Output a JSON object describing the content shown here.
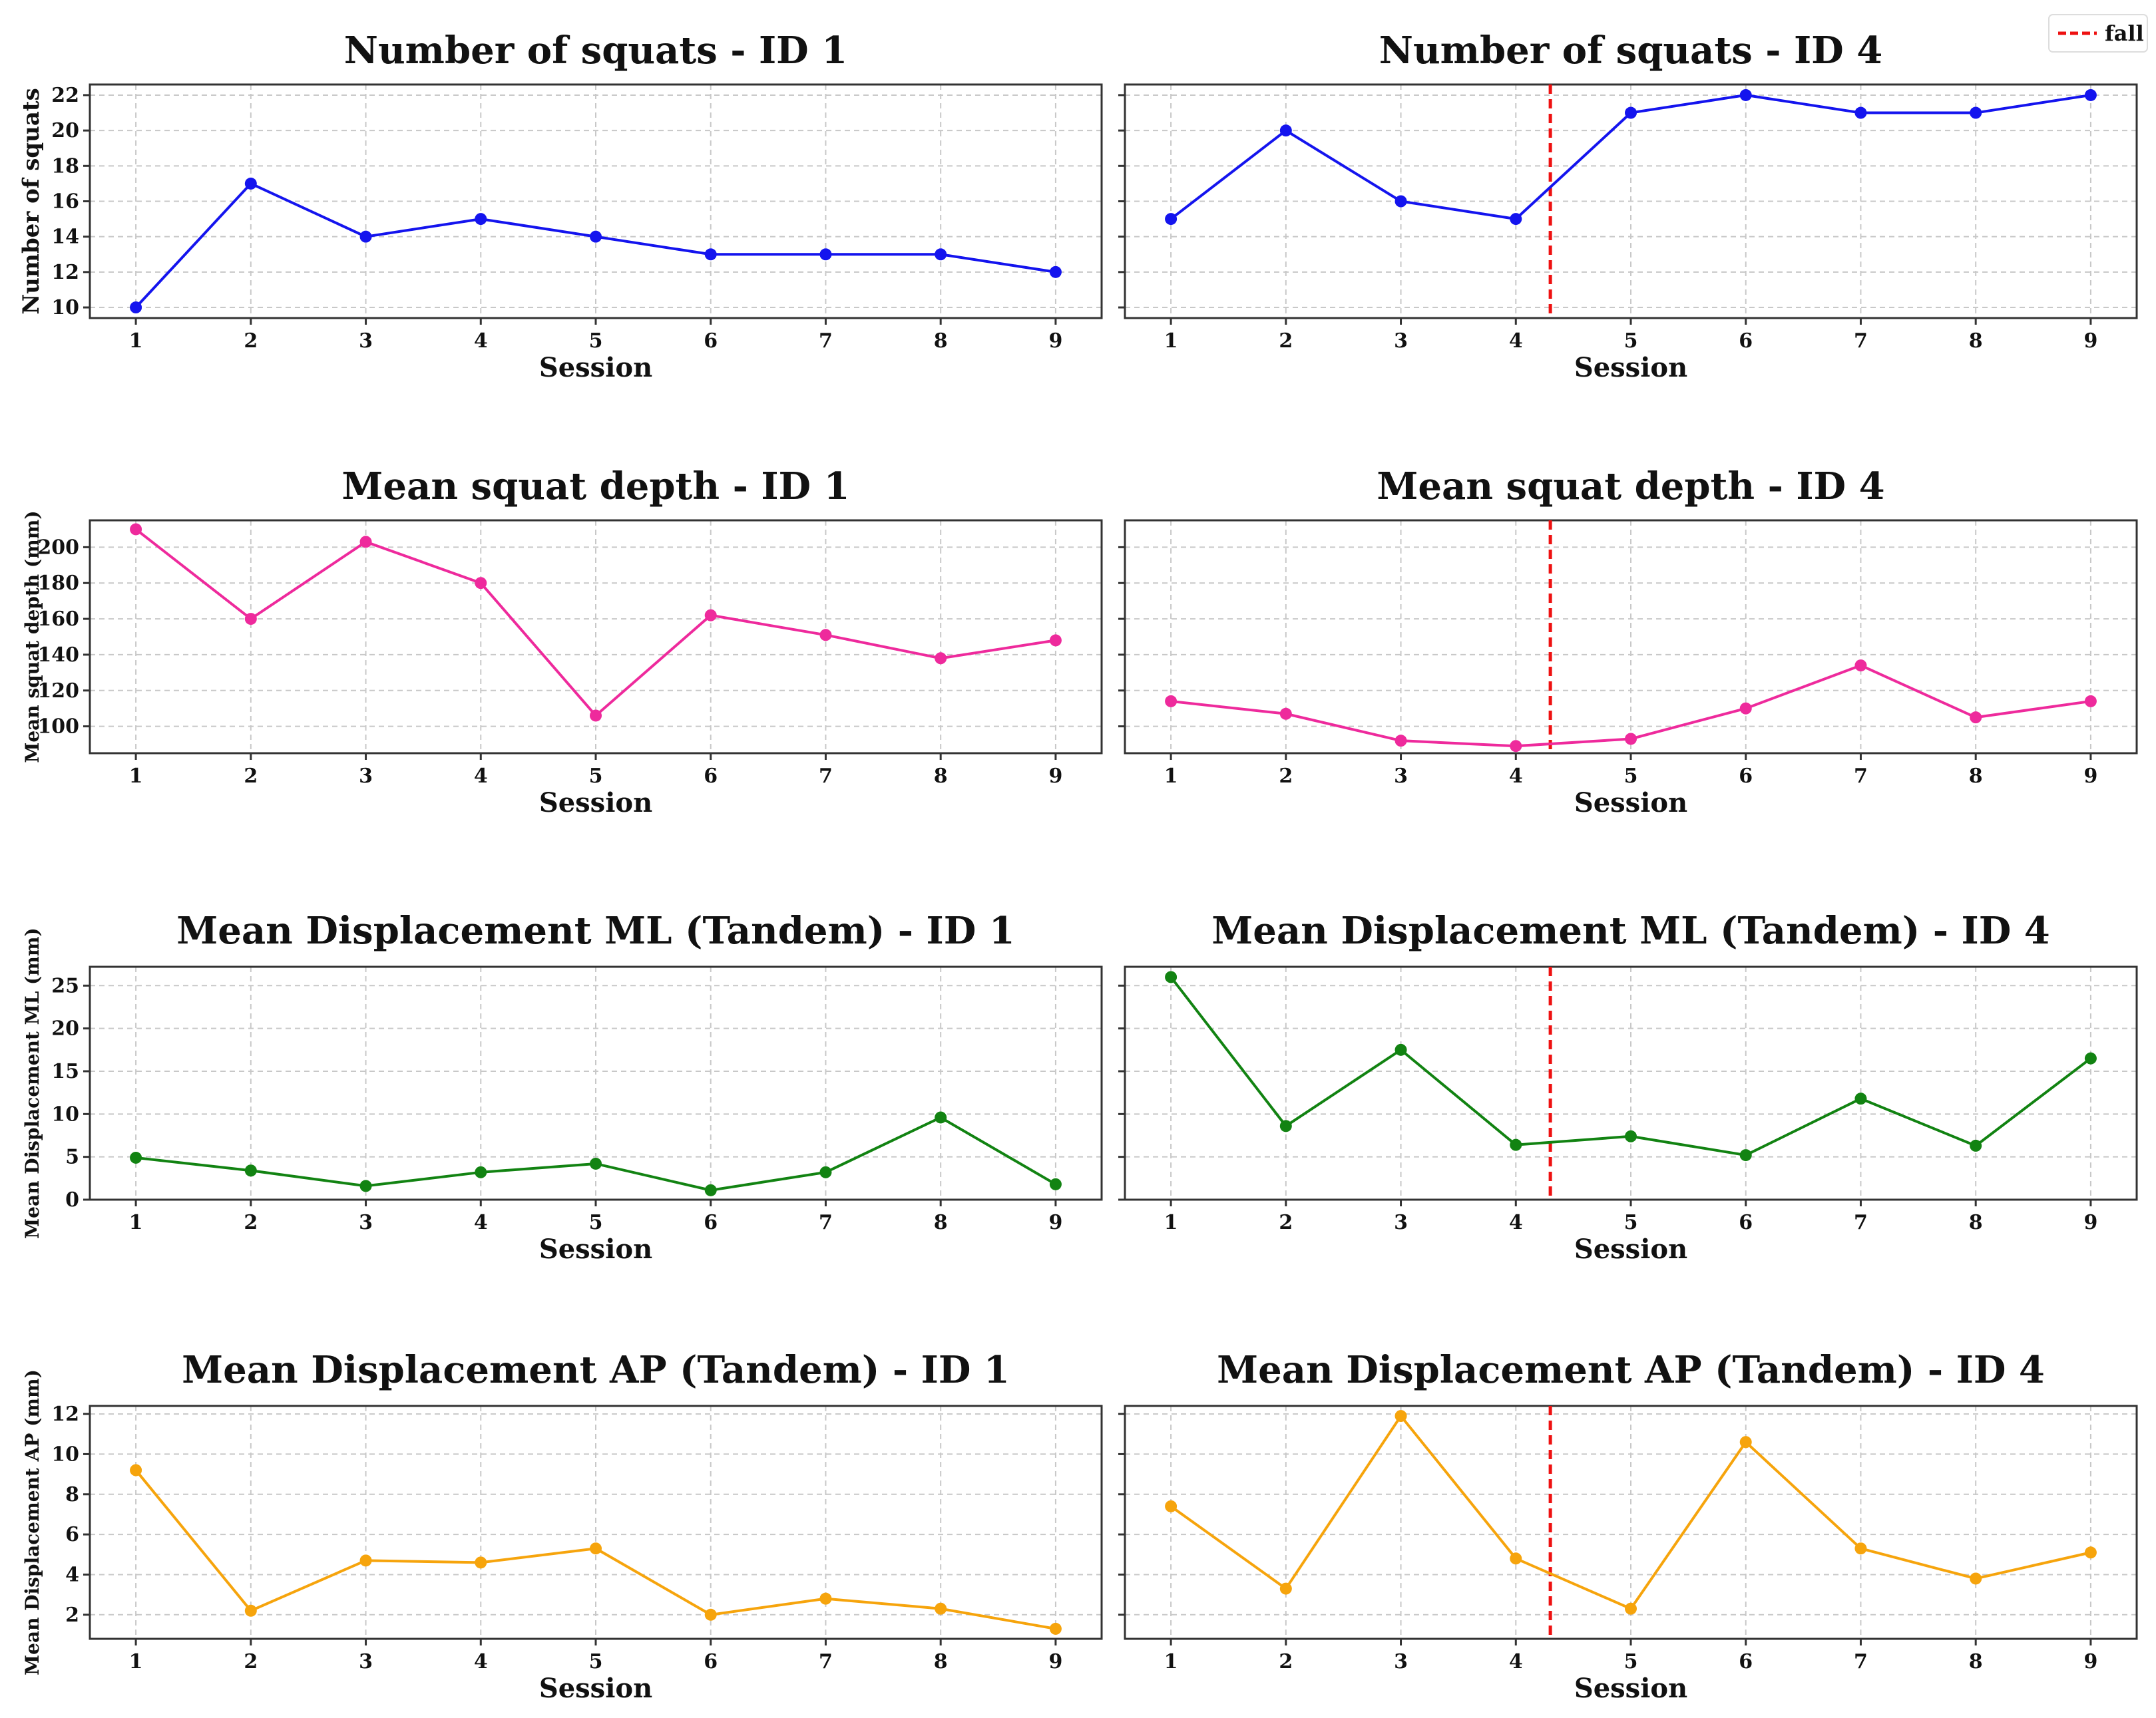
{
  "figure": {
    "legend": {
      "label": "fall",
      "color": "#ee1111",
      "placement": "top-right"
    }
  },
  "chart_data": [
    {
      "type": "line",
      "title": "Number of squats - ID 1",
      "xlabel": "Session",
      "ylabel": "Number of squats",
      "x": [
        1,
        2,
        3,
        4,
        5,
        6,
        7,
        8,
        9
      ],
      "values": [
        10,
        17,
        14,
        15,
        14,
        13,
        13,
        13,
        12
      ],
      "yticks": [
        10,
        12,
        14,
        16,
        18,
        20,
        22
      ],
      "ylim": [
        9.4,
        22.6
      ],
      "xlim": [
        0.6,
        9.4
      ],
      "color": "#1414ee",
      "fall_after": null
    },
    {
      "type": "line",
      "title": "Number of squats - ID 4",
      "xlabel": "Session",
      "ylabel": "",
      "x": [
        1,
        2,
        3,
        4,
        5,
        6,
        7,
        8,
        9
      ],
      "values": [
        15,
        20,
        16,
        15,
        21,
        22,
        21,
        21,
        22
      ],
      "yticks": [
        10,
        12,
        14,
        16,
        18,
        20,
        22
      ],
      "ylim": [
        9.4,
        22.6
      ],
      "xlim": [
        0.6,
        9.4
      ],
      "color": "#1414ee",
      "fall_after": 4.3
    },
    {
      "type": "line",
      "title": "Mean squat depth - ID 1",
      "xlabel": "Session",
      "ylabel": "Mean squat depth (mm)",
      "x": [
        1,
        2,
        3,
        4,
        5,
        6,
        7,
        8,
        9
      ],
      "values": [
        210,
        160,
        203,
        180,
        106,
        162,
        151,
        138,
        148
      ],
      "yticks": [
        100,
        120,
        140,
        160,
        180,
        200
      ],
      "ylim": [
        85,
        215
      ],
      "xlim": [
        0.6,
        9.4
      ],
      "color": "#ee2a9c",
      "fall_after": null
    },
    {
      "type": "line",
      "title": "Mean squat depth - ID 4",
      "xlabel": "Session",
      "ylabel": "",
      "x": [
        1,
        2,
        3,
        4,
        5,
        6,
        7,
        8,
        9
      ],
      "values": [
        114,
        107,
        92,
        89,
        93,
        110,
        134,
        105,
        114
      ],
      "yticks": [
        100,
        120,
        140,
        160,
        180,
        200
      ],
      "ylim": [
        85,
        215
      ],
      "xlim": [
        0.6,
        9.4
      ],
      "color": "#ee2a9c",
      "fall_after": 4.3
    },
    {
      "type": "line",
      "title": "Mean Displacement ML (Tandem) - ID 1",
      "xlabel": "Session",
      "ylabel": "Mean Displacement ML (mm)",
      "x": [
        1,
        2,
        3,
        4,
        5,
        6,
        7,
        8,
        9
      ],
      "values": [
        4.9,
        3.4,
        1.6,
        3.2,
        4.2,
        1.1,
        3.2,
        9.6,
        1.8
      ],
      "yticks": [
        0,
        5,
        10,
        15,
        20,
        25
      ],
      "ylim": [
        0,
        27.2
      ],
      "xlim": [
        0.6,
        9.4
      ],
      "color": "#128312",
      "fall_after": null
    },
    {
      "type": "line",
      "title": "Mean Displacement ML (Tandem) - ID 4",
      "xlabel": "Session",
      "ylabel": "",
      "x": [
        1,
        2,
        3,
        4,
        5,
        6,
        7,
        8,
        9
      ],
      "values": [
        26,
        8.6,
        17.5,
        6.4,
        7.4,
        5.2,
        11.8,
        6.3,
        16.5
      ],
      "yticks": [
        0,
        5,
        10,
        15,
        20,
        25
      ],
      "ylim": [
        0,
        27.2
      ],
      "xlim": [
        0.6,
        9.4
      ],
      "color": "#128312",
      "fall_after": 4.3
    },
    {
      "type": "line",
      "title": "Mean Displacement AP (Tandem) - ID 1",
      "xlabel": "Session",
      "ylabel": "Mean Displacement AP (mm)",
      "x": [
        1,
        2,
        3,
        4,
        5,
        6,
        7,
        8,
        9
      ],
      "values": [
        9.2,
        2.2,
        4.7,
        4.6,
        5.3,
        2.0,
        2.8,
        2.3,
        1.3
      ],
      "yticks": [
        2,
        4,
        6,
        8,
        10,
        12
      ],
      "ylim": [
        0.8,
        12.4
      ],
      "xlim": [
        0.6,
        9.4
      ],
      "color": "#f6a40c",
      "fall_after": null
    },
    {
      "type": "line",
      "title": "Mean Displacement AP (Tandem) - ID 4",
      "xlabel": "Session",
      "ylabel": "",
      "x": [
        1,
        2,
        3,
        4,
        5,
        6,
        7,
        8,
        9
      ],
      "values": [
        7.4,
        3.3,
        11.9,
        4.8,
        2.3,
        10.6,
        5.3,
        3.8,
        5.1
      ],
      "yticks": [
        2,
        4,
        6,
        8,
        10,
        12
      ],
      "ylim": [
        0.8,
        12.4
      ],
      "xlim": [
        0.6,
        9.4
      ],
      "color": "#f6a40c",
      "fall_after": 4.3
    }
  ]
}
